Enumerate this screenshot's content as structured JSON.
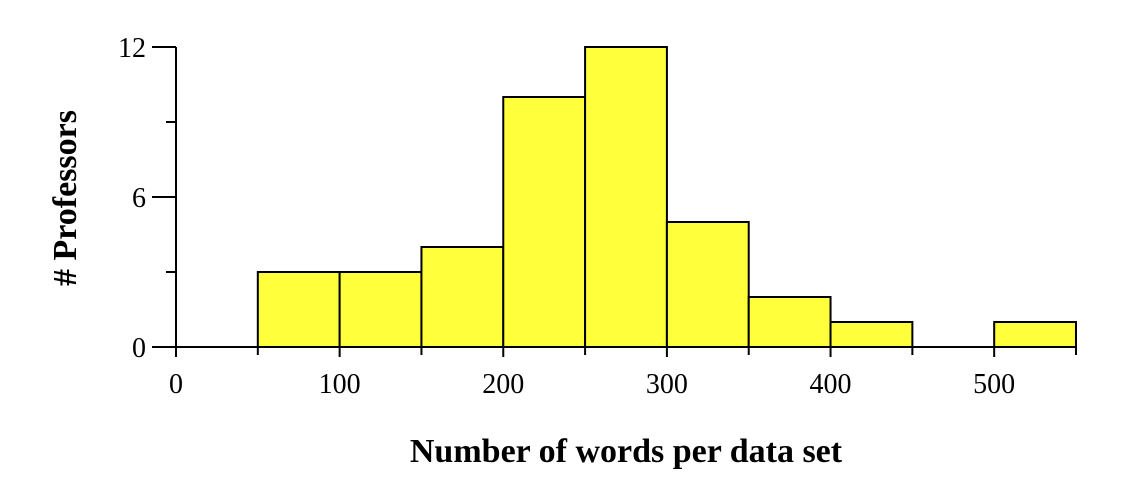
{
  "chart_data": {
    "type": "histogram",
    "x_label": "Number of words per data set",
    "y_label": "# Professors",
    "bins": [
      0,
      50,
      100,
      150,
      200,
      250,
      300,
      350,
      400,
      450,
      500,
      550
    ],
    "values": [
      0,
      3,
      3,
      4,
      10,
      12,
      5,
      2,
      1,
      0,
      1
    ],
    "color": "#ffff3c",
    "xlim": [
      0,
      550
    ],
    "xticks": [
      0,
      100,
      200,
      300,
      400,
      500
    ],
    "xminorticks": [
      50,
      150,
      250,
      350,
      450,
      550
    ],
    "ylim": [
      0,
      12
    ],
    "yticks": [
      0,
      6,
      12
    ],
    "yminorticks": [
      3,
      9
    ]
  }
}
